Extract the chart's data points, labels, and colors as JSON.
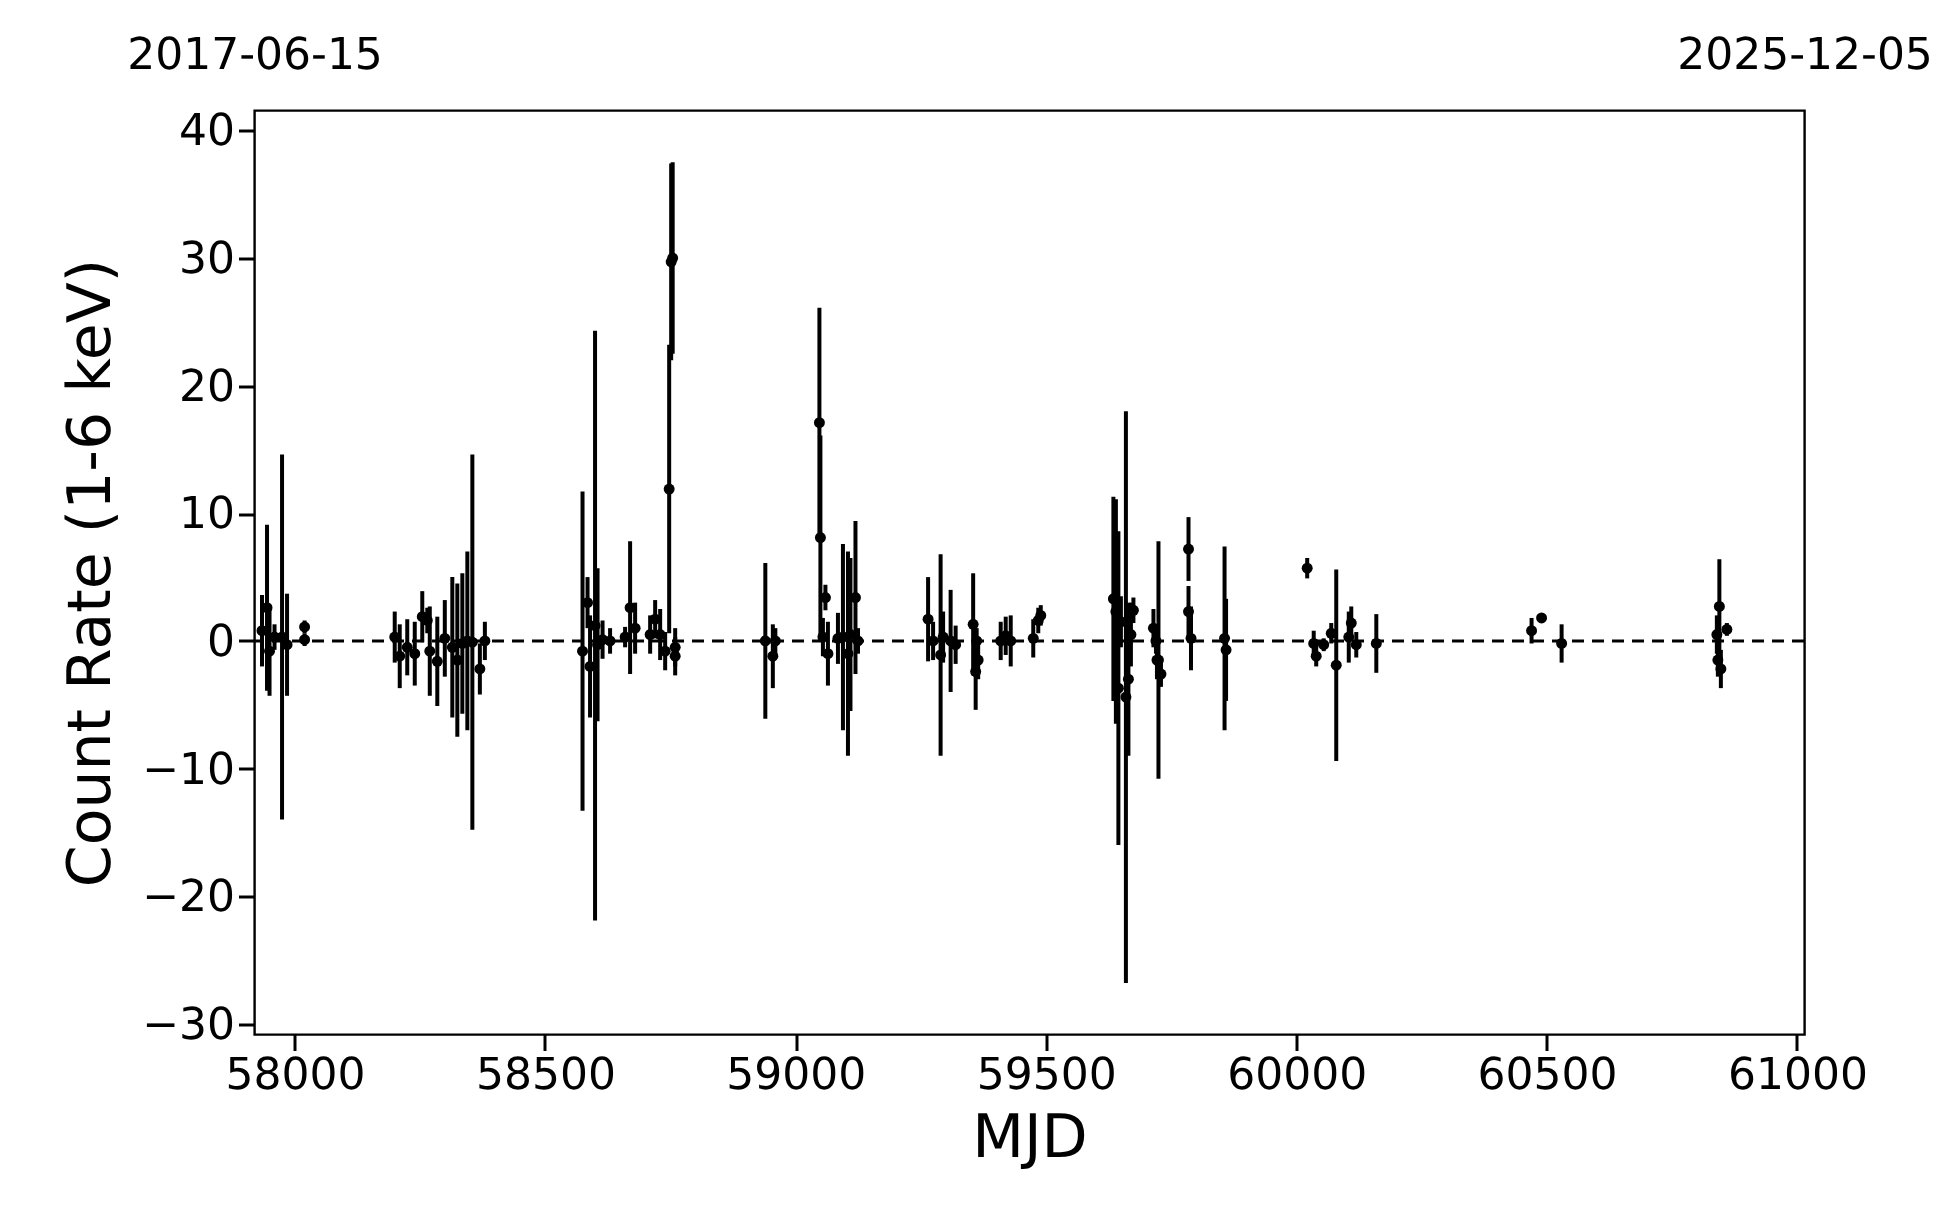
{
  "chart_data": {
    "type": "scatter",
    "xlabel": "MJD",
    "ylabel": "Count Rate (1-6 keV)",
    "x": [
      57935,
      57945,
      57950,
      57960,
      57975,
      57985,
      58020,
      58020,
      58200,
      58210,
      58225,
      58240,
      58255,
      58265,
      58270,
      58285,
      58300,
      58315,
      58325,
      58335,
      58345,
      58355,
      58370,
      58380,
      58575,
      58585,
      58590,
      58600,
      58605,
      58615,
      58630,
      58660,
      58670,
      58680,
      58710,
      58720,
      58730,
      58740,
      58748,
      58752,
      58755,
      58760,
      58760,
      58940,
      58955,
      58960,
      59048,
      59050,
      59055,
      59060,
      59065,
      59085,
      59095,
      59105,
      59110,
      59120,
      59125,
      59265,
      59275,
      59290,
      59295,
      59310,
      59320,
      59355,
      59360,
      59365,
      59362,
      59410,
      59420,
      59430,
      59475,
      59485,
      59490,
      59635,
      59640,
      59645,
      59650,
      59660,
      59665,
      59670,
      59675,
      59715,
      59720,
      59725,
      59730,
      59722,
      59785,
      59785,
      59790,
      59857,
      59860,
      60022,
      60035,
      60040,
      60055,
      60070,
      60080,
      60105,
      60110,
      60120,
      60160,
      60470,
      60490,
      60530,
      60840,
      60845,
      60842,
      60848,
      60860
    ],
    "series": [
      {
        "color": "#000000",
        "values": [
          0.8,
          2.6,
          -0.8,
          0.3,
          0.3,
          -0.3,
          1.1,
          0.1,
          0.3,
          -1.2,
          -0.5,
          -1.0,
          1.9,
          1.6,
          -0.8,
          -1.6,
          0.2,
          -0.5,
          -1.5,
          -0.2,
          0.0,
          -0.1,
          -2.2,
          0.0,
          -0.8,
          3.0,
          -2.0,
          1.2,
          -0.3,
          0.1,
          0.0,
          0.3,
          2.6,
          1.0,
          0.5,
          1.7,
          0.5,
          -0.8,
          11.9,
          29.7,
          30.0,
          -0.5,
          -1.2,
          0.0,
          -1.2,
          0.0,
          17.1,
          8.1,
          0.3,
          3.4,
          -1.0,
          0.2,
          0.3,
          -1.0,
          0.5,
          3.4,
          0.0,
          1.7,
          0.0,
          -1.1,
          0.3,
          0.0,
          -0.3,
          1.3,
          -2.4,
          -1.5,
          0.0,
          0.0,
          0.4,
          0.0,
          0.2,
          1.6,
          2.0,
          3.3,
          2.3,
          -3.7,
          1.5,
          -4.4,
          -3.0,
          0.5,
          2.4,
          1.0,
          0.0,
          -1.5,
          -2.6,
          -1.5,
          7.2,
          2.3,
          0.2,
          0.2,
          -0.7,
          5.7,
          -0.2,
          -1.2,
          -0.3,
          0.6,
          -1.9,
          0.3,
          1.4,
          -0.3,
          -0.2,
          0.8,
          1.8,
          -0.2,
          0.5,
          2.7,
          -1.5,
          -2.2,
          0.9
        ],
        "errors": [
          2.8,
          6.5,
          3.5,
          1,
          14.3,
          4,
          0.5,
          0.5,
          2,
          2.5,
          2.2,
          2.5,
          2,
          1,
          3.5,
          3.5,
          3,
          5.5,
          6,
          5.5,
          7.0,
          14.7,
          2,
          1.5,
          12.5,
          2,
          4,
          23.1,
          6,
          1.5,
          1,
          0.8,
          5.2,
          2,
          1.5,
          1.5,
          2,
          1.5,
          11.3,
          7.7,
          7.5,
          1.5,
          1.5,
          6.1,
          2.5,
          1,
          9,
          8,
          1.5,
          1,
          2.5,
          2,
          7.3,
          8,
          6,
          6,
          1,
          3.3,
          1.5,
          7.9,
          2,
          4,
          1.5,
          4,
          3,
          1.5,
          1,
          1.5,
          1.5,
          2,
          1.5,
          1,
          0.8,
          8,
          8.8,
          12.3,
          2,
          22.4,
          6,
          2.5,
          1,
          1.5,
          1,
          9.3,
          1,
          1.5,
          2.5,
          2,
          2.5,
          7.2,
          4,
          0.8,
          1,
          0.8,
          0.5,
          0.8,
          7.5,
          2,
          1.3,
          1,
          2.3,
          1,
          0.3,
          1.5,
          1.5,
          3.7,
          1.3,
          1.5,
          0.5
        ]
      }
    ],
    "marker": "circle",
    "xlim": [
      57919,
      61014
    ],
    "xticks": [
      58000,
      58500,
      59000,
      59500,
      60000,
      60500,
      61000
    ],
    "x2lim": [
      "2017-06-15",
      "2025-12-05"
    ],
    "x2ticks": [
      "2017-06-15",
      "2025-12-05"
    ],
    "ylim": [
      -30.8,
      41.6
    ],
    "yticks": [
      -30,
      -20,
      -10,
      0,
      10,
      20,
      30,
      40
    ],
    "ref_lines": [
      {
        "axis": "y",
        "value": 0,
        "color": "#000000",
        "line_style": "dashed"
      }
    ],
    "grid": false
  }
}
